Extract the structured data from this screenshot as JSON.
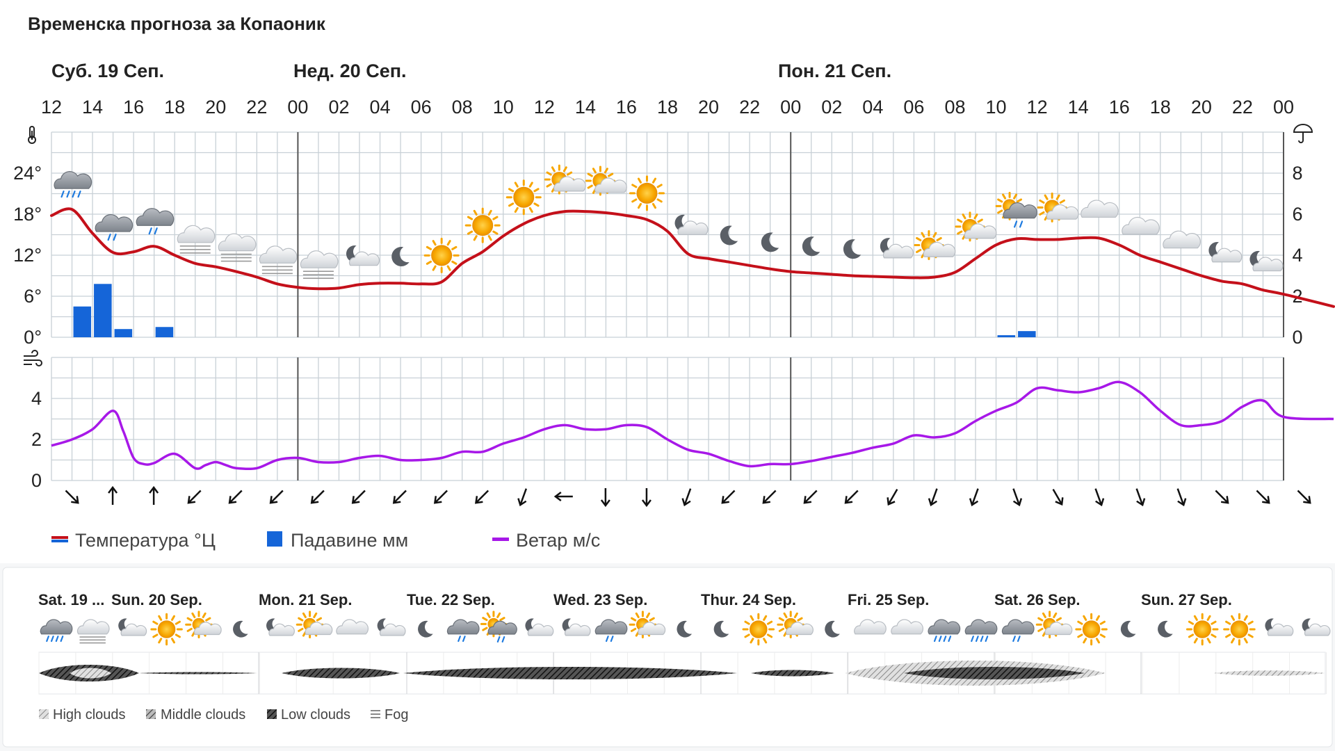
{
  "header": {
    "title": "Временска прогноза за Копаоник"
  },
  "chart_data": {
    "type": "line",
    "days": [
      {
        "label": "Суб. 19 Сеп.",
        "start_hour_index": 0
      },
      {
        "label": "Нед. 20 Сеп.",
        "start_hour_index": 12
      },
      {
        "label": "Пон. 21 Сеп.",
        "start_hour_index": 36
      }
    ],
    "x_hour_labels": [
      "12",
      "14",
      "16",
      "18",
      "20",
      "22",
      "00",
      "02",
      "04",
      "06",
      "08",
      "10",
      "12",
      "14",
      "16",
      "18",
      "20",
      "22",
      "00",
      "02",
      "04",
      "06",
      "08",
      "10",
      "12",
      "14",
      "16",
      "18",
      "20",
      "22",
      "00"
    ],
    "temperature": {
      "name": "Температура °Ц",
      "color": "#c4101a",
      "ylim": [
        0,
        30
      ],
      "ticks": [
        "0°",
        "6°",
        "12°",
        "18°",
        "24°"
      ],
      "tick_values": [
        0,
        6,
        12,
        18,
        24
      ],
      "hour_offsets": [
        0,
        1,
        2,
        3,
        4,
        5,
        6,
        7,
        8,
        9,
        10,
        11,
        12,
        13,
        14,
        15,
        16,
        17,
        18,
        19,
        20,
        21,
        22,
        23,
        24,
        25,
        26,
        27,
        28,
        29,
        30,
        31,
        32,
        33,
        34,
        35,
        36,
        37,
        38,
        39,
        40,
        41,
        42,
        43,
        44,
        45,
        46,
        47,
        48,
        49,
        50,
        51,
        52,
        53,
        54,
        55,
        56,
        57,
        58,
        59,
        60,
        61
      ],
      "values": [
        17.8,
        18.7,
        15.2,
        12.4,
        12.5,
        13.3,
        12.0,
        10.8,
        10.3,
        9.6,
        8.8,
        7.8,
        7.3,
        7.1,
        7.2,
        7.7,
        7.9,
        7.9,
        7.8,
        8.1,
        10.8,
        12.5,
        14.8,
        16.6,
        17.8,
        18.4,
        18.4,
        18.2,
        17.8,
        17.2,
        15.5,
        12.2,
        11.5,
        11.0,
        10.5,
        10.0,
        9.6,
        9.4,
        9.2,
        9.0,
        8.9,
        8.8,
        8.7,
        8.8,
        9.5,
        11.5,
        13.5,
        14.4,
        14.3,
        14.3,
        14.5,
        14.5,
        13.5,
        12.0,
        11.0,
        10.0,
        9.0,
        8.2,
        7.8,
        6.9,
        6.3,
        4.5
      ]
    },
    "precipitation": {
      "name": "Падавине мм",
      "color": "#1565d8",
      "ylim": [
        0,
        10
      ],
      "ticks": [
        "0",
        "2",
        "4",
        "6",
        "8"
      ],
      "tick_values": [
        0,
        2,
        4,
        6,
        8
      ],
      "bars": [
        {
          "hour_offset": 1,
          "value": 1.5
        },
        {
          "hour_offset": 2,
          "value": 2.6
        },
        {
          "hour_offset": 3,
          "value": 0.4
        },
        {
          "hour_offset": 5,
          "value": 0.5
        },
        {
          "hour_offset": 46,
          "value": 0.1
        },
        {
          "hour_offset": 47,
          "value": 0.3
        }
      ]
    },
    "wind": {
      "name": "Ветар м/с",
      "color": "#a718e8",
      "ylim": [
        0,
        6
      ],
      "ticks": [
        "0",
        "2",
        "4"
      ],
      "tick_values": [
        0,
        2,
        4
      ],
      "hour_offsets": [
        0,
        1,
        2,
        3,
        3.5,
        4,
        4.5,
        5,
        6,
        7,
        7.5,
        8,
        8.5,
        9,
        10,
        11,
        12,
        13,
        14,
        15,
        16,
        17,
        18,
        19,
        20,
        21,
        22,
        23,
        24,
        25,
        26,
        27,
        28,
        29,
        30,
        31,
        32,
        33,
        34,
        35,
        36,
        37,
        38,
        39,
        40,
        41,
        42,
        43,
        44,
        45,
        46,
        47,
        48,
        49,
        50,
        51,
        52,
        53,
        54,
        55,
        56,
        57,
        58,
        59,
        60,
        61
      ],
      "values": [
        1.7,
        2.0,
        2.5,
        3.4,
        2.4,
        1.1,
        0.8,
        0.85,
        1.3,
        0.6,
        0.75,
        0.9,
        0.75,
        0.6,
        0.6,
        1.0,
        1.1,
        0.9,
        0.9,
        1.1,
        1.2,
        1.0,
        1.0,
        1.1,
        1.4,
        1.4,
        1.8,
        2.1,
        2.5,
        2.7,
        2.5,
        2.5,
        2.7,
        2.6,
        2.0,
        1.5,
        1.3,
        0.95,
        0.7,
        0.8,
        0.8,
        0.95,
        1.15,
        1.35,
        1.6,
        1.8,
        2.2,
        2.1,
        2.3,
        2.9,
        3.4,
        3.8,
        4.5,
        4.4,
        4.3,
        4.5,
        4.8,
        4.3,
        3.4,
        2.7,
        2.7,
        2.9,
        3.6,
        3.9,
        3.1,
        3.0
      ]
    },
    "wind_direction_degrees": [
      135,
      0,
      0,
      225,
      225,
      225,
      225,
      225,
      225,
      225,
      225,
      200,
      270,
      180,
      180,
      200,
      225,
      225,
      225,
      225,
      210,
      200,
      200,
      160,
      150,
      160,
      160,
      160,
      135,
      135,
      135,
      135
    ]
  },
  "top_icons": [
    "heavy-rain-icon",
    "rain-cloud-icon",
    "rain-cloud-icon",
    "fog-cloud-icon",
    "fog-cloud-icon",
    "fog-cloud-icon",
    "fog-cloud-icon",
    "moon-cloud-icon",
    "moon-icon",
    "sun-icon",
    "sun-icon",
    "sun-icon",
    "sun-cloud-icon",
    "sun-cloud-icon",
    "sun-icon",
    "moon-cloud-icon",
    "moon-icon",
    "moon-icon",
    "moon-icon",
    "moon-icon",
    "moon-cloud-icon",
    "sun-cloud-icon",
    "sun-cloud-icon",
    "sun-rain-cloud-icon",
    "sun-cloud-icon",
    "cloud-icon",
    "cloud-icon",
    "cloud-icon",
    "moon-cloud-icon",
    "moon-cloud-icon"
  ],
  "legend": {
    "temperature": "Температура °Ц",
    "precipitation": "Падавине мм",
    "wind": "Ветар м/с"
  },
  "week": {
    "days": [
      "Sat. 19 ...",
      "Sun. 20 Sep.",
      "Mon. 21 Sep.",
      "Tue. 22 Sep.",
      "Wed. 23 Sep.",
      "Thur. 24 Sep.",
      "Fri. 25 Sep.",
      "Sat. 26 Sep.",
      "Sun. 27 Sep."
    ],
    "icons": [
      "heavy-rain-icon",
      "fog-cloud-icon",
      "moon-cloud-icon",
      "sun-icon",
      "sun-cloud-icon",
      "moon-icon",
      "moon-cloud-icon",
      "sun-cloud-icon",
      "cloud-icon",
      "moon-cloud-icon",
      "moon-icon",
      "rain-cloud-icon",
      "sun-rain-cloud-icon",
      "moon-cloud-icon",
      "moon-cloud-icon",
      "rain-cloud-icon",
      "sun-cloud-icon",
      "moon-icon",
      "moon-icon",
      "sun-icon",
      "sun-cloud-icon",
      "moon-icon",
      "cloud-icon",
      "cloud-icon",
      "heavy-rain-icon",
      "heavy-rain-icon",
      "rain-cloud-icon",
      "sun-cloud-icon",
      "sun-icon",
      "moon-icon",
      "moon-icon",
      "sun-icon",
      "sun-icon",
      "moon-cloud-icon",
      "moon-cloud-icon"
    ],
    "legend": {
      "high": "High clouds",
      "middle": "Middle clouds",
      "low": "Low clouds",
      "fog": "Fog"
    }
  },
  "colors": {
    "grid": "#c8d0d6",
    "cloud_gray": "#9aa0a8",
    "sun": "#f7a600",
    "moon": "#5a5f66"
  }
}
